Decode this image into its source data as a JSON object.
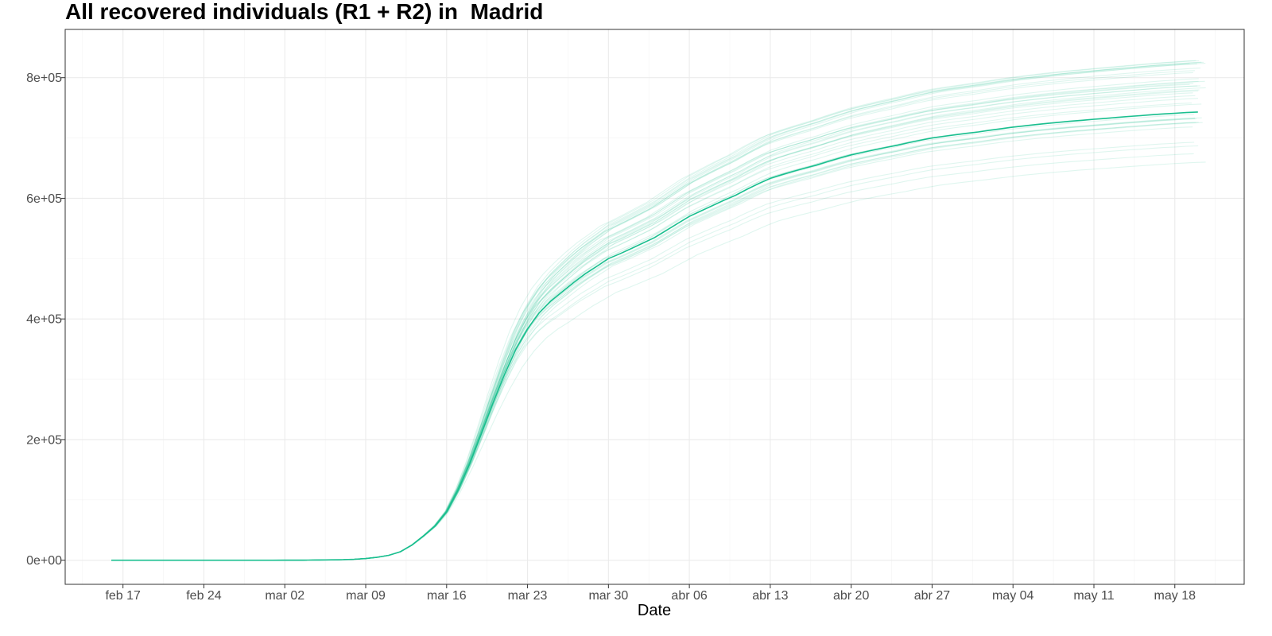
{
  "chart_data": {
    "type": "line",
    "title": "All recovered individuals (R1 + R2) in  Madrid",
    "xlabel": "Date",
    "ylabel": "",
    "x_type": "date",
    "xlim": [
      "2020-02-12",
      "2020-05-24"
    ],
    "ylim": [
      -40000,
      880000
    ],
    "grid": true,
    "legend": "none",
    "x_ticks": [
      {
        "date": "2020-02-17",
        "label": "feb 17"
      },
      {
        "date": "2020-02-24",
        "label": "feb 24"
      },
      {
        "date": "2020-03-02",
        "label": "mar 02"
      },
      {
        "date": "2020-03-09",
        "label": "mar 09"
      },
      {
        "date": "2020-03-16",
        "label": "mar 16"
      },
      {
        "date": "2020-03-23",
        "label": "mar 23"
      },
      {
        "date": "2020-03-30",
        "label": "mar 30"
      },
      {
        "date": "2020-04-06",
        "label": "abr 06"
      },
      {
        "date": "2020-04-13",
        "label": "abr 13"
      },
      {
        "date": "2020-04-20",
        "label": "abr 20"
      },
      {
        "date": "2020-04-27",
        "label": "abr 27"
      },
      {
        "date": "2020-05-04",
        "label": "may 04"
      },
      {
        "date": "2020-05-11",
        "label": "may 11"
      },
      {
        "date": "2020-05-18",
        "label": "may 18"
      }
    ],
    "y_ticks": [
      {
        "value": 0,
        "label": "0e+00"
      },
      {
        "value": 200000,
        "label": "2e+05"
      },
      {
        "value": 400000,
        "label": "4e+05"
      },
      {
        "value": 600000,
        "label": "6e+05"
      },
      {
        "value": 800000,
        "label": "8e+05"
      }
    ],
    "colors": {
      "line": "#1abf8f",
      "ensemble": "#1abf8f",
      "grid": "#ebebeb",
      "panel_border": "#333333"
    },
    "series": [
      {
        "role": "median",
        "x": [
          "2020-02-16",
          "2020-03-01",
          "2020-03-05",
          "2020-03-08",
          "2020-03-10",
          "2020-03-12",
          "2020-03-14",
          "2020-03-16",
          "2020-03-18",
          "2020-03-20",
          "2020-03-22",
          "2020-03-24",
          "2020-03-26",
          "2020-03-28",
          "2020-03-30",
          "2020-04-03",
          "2020-04-06",
          "2020-04-10",
          "2020-04-13",
          "2020-04-17",
          "2020-04-20",
          "2020-04-24",
          "2020-04-27",
          "2020-05-01",
          "2020-05-04",
          "2020-05-08",
          "2020-05-11",
          "2020-05-15",
          "2020-05-18",
          "2020-05-20"
        ],
        "y": [
          0,
          0,
          300,
          1500,
          5000,
          14000,
          40000,
          80000,
          160000,
          260000,
          350000,
          410000,
          445000,
          475000,
          500000,
          535000,
          570000,
          605000,
          633000,
          655000,
          672000,
          688000,
          700000,
          710000,
          718000,
          726000,
          731000,
          737000,
          741000,
          743000
        ]
      }
    ],
    "ensemble": {
      "count": 40,
      "final_range": [
        660000,
        838000
      ],
      "note": "semi-transparent simulation trajectories following the same shape"
    }
  }
}
